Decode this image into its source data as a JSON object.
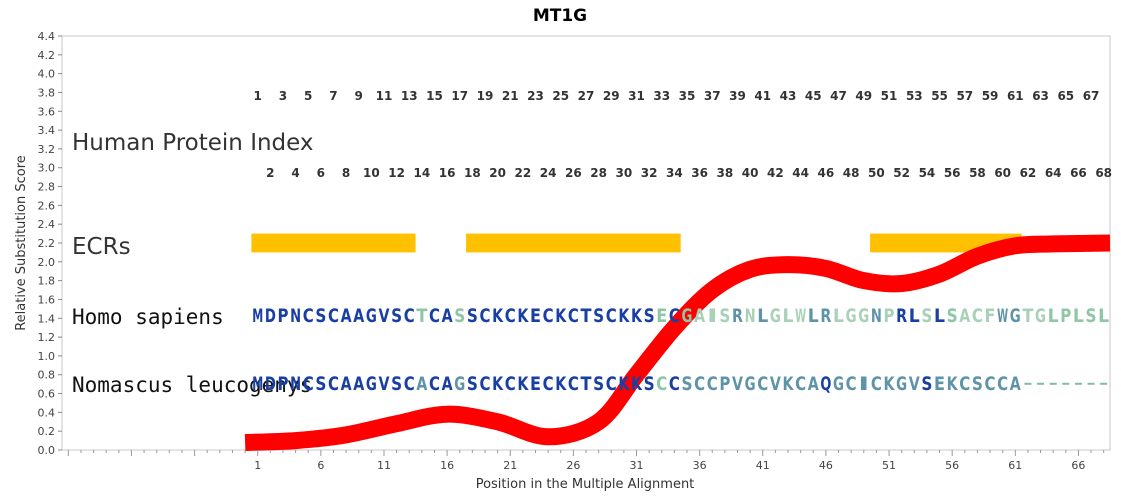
{
  "chart_data": {
    "type": "line",
    "title": "MT1G",
    "xlabel": "Position in the Multiple Alignment",
    "ylabel": "Relative Substitution Score",
    "ylim": [
      0,
      4.4
    ],
    "xlim": [
      -14.5,
      68.5
    ],
    "yticks": [
      "0.0",
      "0.2",
      "0.4",
      "0.6",
      "0.8",
      "1.0",
      "1.2",
      "1.4",
      "1.6",
      "1.8",
      "2.0",
      "2.2",
      "2.4",
      "2.6",
      "2.8",
      "3.0",
      "3.2",
      "3.4",
      "3.6",
      "3.8",
      "4.0",
      "4.2",
      "4.4"
    ],
    "xticks": [
      "1",
      "6",
      "11",
      "16",
      "21",
      "26",
      "31",
      "36",
      "41",
      "46",
      "51",
      "56",
      "61",
      "66"
    ],
    "series": [
      {
        "color": "#ff0000",
        "x": [
          0,
          4,
          8,
          12,
          16,
          20,
          24,
          28,
          31,
          34,
          37,
          40,
          43,
          46,
          49,
          52,
          55,
          58,
          61,
          64,
          68.5
        ],
        "y": [
          0.08,
          0.1,
          0.16,
          0.28,
          0.38,
          0.3,
          0.14,
          0.3,
          0.8,
          1.3,
          1.7,
          1.92,
          1.97,
          1.93,
          1.8,
          1.77,
          1.87,
          2.06,
          2.17,
          2.19,
          2.2
        ]
      }
    ],
    "index_label": "Human Protein Index",
    "ecr_label": "ECRs",
    "ecrs": [
      [
        0.5,
        13.5
      ],
      [
        17.5,
        34.5
      ],
      [
        49.5,
        61.5
      ]
    ],
    "species": [
      {
        "name": "Homo sapiens",
        "sequence": "MDPNCSCAAGVSCTCASSCKCKECKCTSCKKSECGAISRNLGLWLRLGGNPRLSLSACFWGTGLPLSL",
        "colors": "DDDDDDDDDDDDDLDDLDDDDDDDDDDDDDDDLDLPPPMPMPPPMMPPPMPDDPDLPPPMMPPLLLLL"
      },
      {
        "name": "Nomascus leucogenys",
        "sequence": "MDPNCSCAAGVSCACAGSCKCKECKCTSCKKSCCSCCPVGCVKCAQGCICKGVSEKCSCCA-------",
        "colors": "DDDDDDDDDDDDDMDDMDDDDDDDDDDDDDDDLDMMMMMMMMMMMDMMMMMMMDMMMMMMMDDDDDDD"
      }
    ],
    "colors": {
      "series": "#ff0000",
      "ecr": "#ffc000",
      "aa_dark": "#1a3fa3",
      "aa_mid": "#5f94a8",
      "aa_light": "#8fc6a6",
      "aa_pale": "#a8d1b8",
      "gap": "#7fbf9b"
    }
  }
}
